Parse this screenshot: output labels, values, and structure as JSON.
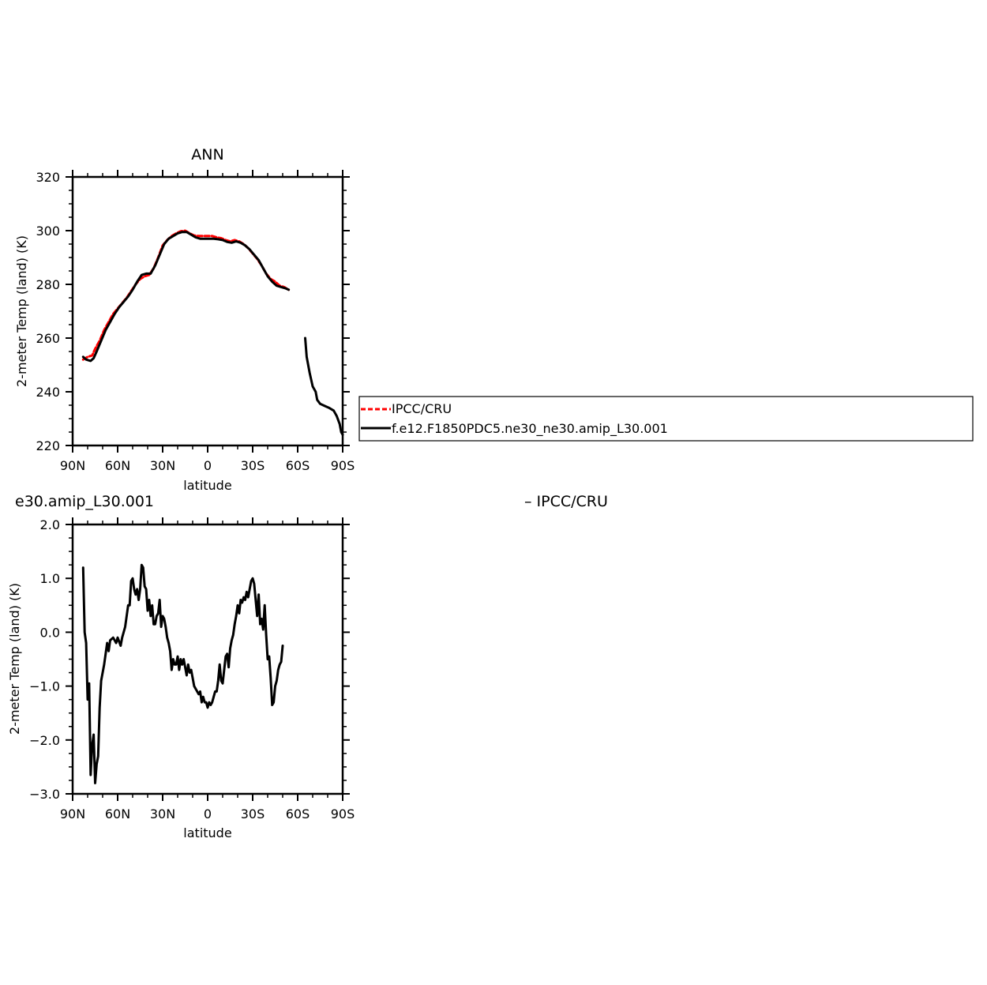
{
  "chart_data": [
    {
      "type": "line",
      "title": "ANN",
      "xlabel": "latitude",
      "ylabel": "2-meter Temp (land) (K)",
      "xlim": [
        90,
        -90
      ],
      "ylim": [
        220,
        320
      ],
      "xticks": [
        {
          "value": 90,
          "label": "90N"
        },
        {
          "value": 60,
          "label": "60N"
        },
        {
          "value": 30,
          "label": "30N"
        },
        {
          "value": 0,
          "label": "0"
        },
        {
          "value": -30,
          "label": "30S"
        },
        {
          "value": -60,
          "label": "60S"
        },
        {
          "value": -90,
          "label": "90S"
        }
      ],
      "yticks": [
        {
          "value": 220,
          "label": "220"
        },
        {
          "value": 240,
          "label": "240"
        },
        {
          "value": 260,
          "label": "260"
        },
        {
          "value": 280,
          "label": "280"
        },
        {
          "value": 300,
          "label": "300"
        },
        {
          "value": 320,
          "label": "320"
        }
      ],
      "legend_position": "right",
      "legend": [
        "IPCC/CRU",
        "f.e12.F1850PDC5.ne30_ne30.amip_L30.001"
      ],
      "series": [
        {
          "name": "IPCC/CRU",
          "color": "#ff0000",
          "dash": "dashed",
          "points": [
            [
              83,
              252
            ],
            [
              80,
              253
            ],
            [
              77,
              253.5
            ],
            [
              75,
              256
            ],
            [
              72,
              259
            ],
            [
              69,
              263
            ],
            [
              66,
              266
            ],
            [
              63,
              269
            ],
            [
              60,
              271
            ],
            [
              57,
              273
            ],
            [
              54,
              275
            ],
            [
              51,
              277.5
            ],
            [
              48,
              280
            ],
            [
              45,
              282
            ],
            [
              42,
              283
            ],
            [
              39,
              283.5
            ],
            [
              36,
              286
            ],
            [
              33,
              290
            ],
            [
              30,
              294.5
            ],
            [
              27,
              296.5
            ],
            [
              24,
              298
            ],
            [
              21,
              299
            ],
            [
              18,
              299.8
            ],
            [
              15,
              300
            ],
            [
              12,
              299
            ],
            [
              9,
              298.2
            ],
            [
              6,
              298
            ],
            [
              3,
              298
            ],
            [
              0,
              298
            ],
            [
              -3,
              298
            ],
            [
              -6,
              297.5
            ],
            [
              -9,
              297.2
            ],
            [
              -12,
              296.5
            ],
            [
              -15,
              296
            ],
            [
              -18,
              296.5
            ],
            [
              -21,
              296
            ],
            [
              -24,
              295
            ],
            [
              -27,
              293.5
            ],
            [
              -30,
              291.5
            ],
            [
              -33,
              289.5
            ],
            [
              -36,
              287
            ],
            [
              -39,
              284
            ],
            [
              -42,
              282
            ],
            [
              -45,
              281
            ],
            [
              -48,
              279.5
            ],
            [
              -51,
              279
            ],
            [
              -54,
              278
            ]
          ]
        },
        {
          "name": "f.e12.F1850PDC5.ne30_ne30.amip_L30.001",
          "color": "#000000",
          "dash": "solid",
          "points": [
            [
              83,
              253
            ],
            [
              81,
              252
            ],
            [
              78,
              251.5
            ],
            [
              76,
              252.5
            ],
            [
              74,
              255
            ],
            [
              71,
              259
            ],
            [
              68,
              263
            ],
            [
              65,
              266
            ],
            [
              62,
              269
            ],
            [
              59,
              271.5
            ],
            [
              56,
              273.5
            ],
            [
              53,
              275.5
            ],
            [
              50,
              278
            ],
            [
              47,
              281
            ],
            [
              44,
              283.5
            ],
            [
              41,
              284
            ],
            [
              38,
              284
            ],
            [
              35,
              287
            ],
            [
              32,
              291
            ],
            [
              29,
              295
            ],
            [
              26,
              297
            ],
            [
              23,
              298
            ],
            [
              20,
              299
            ],
            [
              17,
              299.5
            ],
            [
              14,
              299.5
            ],
            [
              11,
              298.5
            ],
            [
              8,
              297.5
            ],
            [
              5,
              297
            ],
            [
              2,
              297
            ],
            [
              -1,
              297
            ],
            [
              -4,
              297
            ],
            [
              -7,
              296.8
            ],
            [
              -10,
              296.5
            ],
            [
              -13,
              295.8
            ],
            [
              -16,
              295.5
            ],
            [
              -19,
              296
            ],
            [
              -22,
              295.5
            ],
            [
              -25,
              294.5
            ],
            [
              -28,
              293
            ],
            [
              -31,
              291
            ],
            [
              -34,
              289
            ],
            [
              -37,
              286
            ],
            [
              -40,
              283
            ],
            [
              -43,
              281
            ],
            [
              -46,
              279.5
            ],
            [
              -49,
              279
            ],
            [
              -52,
              278.5
            ],
            [
              -54,
              278
            ]
          ]
        },
        {
          "name": "",
          "color": "#000000",
          "dash": "solid",
          "points": [
            [
              -65,
              260
            ],
            [
              -66,
              253
            ],
            [
              -68,
              247
            ],
            [
              -70,
              242
            ],
            [
              -72,
              240
            ],
            [
              -73,
              237
            ],
            [
              -75,
              235.5
            ],
            [
              -77,
              235
            ],
            [
              -79,
              234.5
            ],
            [
              -81,
              234
            ],
            [
              -84,
              233
            ],
            [
              -86,
              231
            ],
            [
              -88,
              228
            ],
            [
              -89,
              225
            ],
            [
              -90,
              224
            ]
          ]
        }
      ]
    },
    {
      "type": "line",
      "title": "e30.amip_L30.001",
      "subtitle": "– IPCC/CRU",
      "xlabel": "latitude",
      "ylabel": "2-meter Temp (land) (K)",
      "xlim": [
        90,
        -90
      ],
      "ylim": [
        -3.0,
        2.0
      ],
      "xticks": [
        {
          "value": 90,
          "label": "90N"
        },
        {
          "value": 60,
          "label": "60N"
        },
        {
          "value": 30,
          "label": "30N"
        },
        {
          "value": 0,
          "label": "0"
        },
        {
          "value": -30,
          "label": "30S"
        },
        {
          "value": -60,
          "label": "60S"
        },
        {
          "value": -90,
          "label": "90S"
        }
      ],
      "yticks": [
        {
          "value": -3.0,
          "label": "−3.0"
        },
        {
          "value": -2.0,
          "label": "−2.0"
        },
        {
          "value": -1.0,
          "label": "−1.0"
        },
        {
          "value": 0.0,
          "label": "0.0"
        },
        {
          "value": 1.0,
          "label": "1.0"
        },
        {
          "value": 2.0,
          "label": "2.0"
        }
      ],
      "series": [
        {
          "name": "",
          "color": "#000000",
          "dash": "solid",
          "points": [
            [
              83,
              1.2
            ],
            [
              82,
              0.0
            ],
            [
              81,
              -0.2
            ],
            [
              80,
              -1.25
            ],
            [
              79,
              -0.95
            ],
            [
              78,
              -2.65
            ],
            [
              77,
              -2.1
            ],
            [
              76,
              -1.9
            ],
            [
              75,
              -2.8
            ],
            [
              74,
              -2.45
            ],
            [
              73,
              -2.3
            ],
            [
              72,
              -1.4
            ],
            [
              71,
              -0.9
            ],
            [
              69,
              -0.6
            ],
            [
              67,
              -0.2
            ],
            [
              66,
              -0.35
            ],
            [
              65,
              -0.15
            ],
            [
              63,
              -0.1
            ],
            [
              61,
              -0.2
            ],
            [
              60,
              -0.1
            ],
            [
              58,
              -0.25
            ],
            [
              57,
              -0.1
            ],
            [
              55,
              0.1
            ],
            [
              54,
              0.3
            ],
            [
              53,
              0.5
            ],
            [
              52,
              0.5
            ],
            [
              51,
              0.95
            ],
            [
              50,
              1.0
            ],
            [
              49,
              0.8
            ],
            [
              48,
              0.7
            ],
            [
              47,
              0.8
            ],
            [
              46,
              0.6
            ],
            [
              45,
              0.8
            ],
            [
              44,
              1.25
            ],
            [
              43,
              1.2
            ],
            [
              42,
              0.85
            ],
            [
              41,
              0.8
            ],
            [
              40,
              0.4
            ],
            [
              39,
              0.6
            ],
            [
              38,
              0.3
            ],
            [
              37,
              0.5
            ],
            [
              36,
              0.15
            ],
            [
              35,
              0.15
            ],
            [
              34,
              0.3
            ],
            [
              33,
              0.35
            ],
            [
              32,
              0.6
            ],
            [
              31,
              0.1
            ],
            [
              30,
              0.3
            ],
            [
              29,
              0.25
            ],
            [
              28,
              0.1
            ],
            [
              27,
              -0.1
            ],
            [
              26,
              -0.2
            ],
            [
              25,
              -0.35
            ],
            [
              24,
              -0.7
            ],
            [
              23,
              -0.5
            ],
            [
              22,
              -0.6
            ],
            [
              21,
              -0.6
            ],
            [
              20,
              -0.45
            ],
            [
              19,
              -0.7
            ],
            [
              18,
              -0.5
            ],
            [
              17,
              -0.6
            ],
            [
              16,
              -0.5
            ],
            [
              15,
              -0.65
            ],
            [
              14,
              -0.8
            ],
            [
              13,
              -0.6
            ],
            [
              12,
              -0.75
            ],
            [
              11,
              -0.7
            ],
            [
              10,
              -0.85
            ],
            [
              9,
              -1.0
            ],
            [
              8,
              -1.05
            ],
            [
              7,
              -1.1
            ],
            [
              6,
              -1.15
            ],
            [
              5,
              -1.1
            ],
            [
              4,
              -1.3
            ],
            [
              3,
              -1.2
            ],
            [
              2,
              -1.3
            ],
            [
              1,
              -1.3
            ],
            [
              0,
              -1.4
            ],
            [
              -1,
              -1.3
            ],
            [
              -2,
              -1.35
            ],
            [
              -3,
              -1.3
            ],
            [
              -4,
              -1.2
            ],
            [
              -5,
              -1.1
            ],
            [
              -6,
              -1.1
            ],
            [
              -7,
              -0.9
            ],
            [
              -8,
              -0.6
            ],
            [
              -9,
              -0.9
            ],
            [
              -10,
              -0.95
            ],
            [
              -11,
              -0.7
            ],
            [
              -12,
              -0.45
            ],
            [
              -13,
              -0.4
            ],
            [
              -14,
              -0.65
            ],
            [
              -15,
              -0.3
            ],
            [
              -16,
              -0.15
            ],
            [
              -17,
              -0.05
            ],
            [
              -18,
              0.15
            ],
            [
              -19,
              0.3
            ],
            [
              -20,
              0.5
            ],
            [
              -21,
              0.35
            ],
            [
              -22,
              0.6
            ],
            [
              -23,
              0.55
            ],
            [
              -24,
              0.65
            ],
            [
              -25,
              0.6
            ],
            [
              -26,
              0.75
            ],
            [
              -27,
              0.65
            ],
            [
              -28,
              0.8
            ],
            [
              -29,
              0.95
            ],
            [
              -30,
              1.0
            ],
            [
              -31,
              0.9
            ],
            [
              -32,
              0.6
            ],
            [
              -33,
              0.3
            ],
            [
              -34,
              0.7
            ],
            [
              -35,
              0.15
            ],
            [
              -36,
              0.25
            ],
            [
              -37,
              0.05
            ],
            [
              -38,
              0.5
            ],
            [
              -39,
              -0.05
            ],
            [
              -40,
              -0.5
            ],
            [
              -41,
              -0.45
            ],
            [
              -42,
              -0.85
            ],
            [
              -43,
              -1.35
            ],
            [
              -44,
              -1.3
            ],
            [
              -45,
              -1.0
            ],
            [
              -46,
              -0.9
            ],
            [
              -47,
              -0.7
            ],
            [
              -48,
              -0.6
            ],
            [
              -49,
              -0.55
            ],
            [
              -50,
              -0.25
            ]
          ]
        }
      ]
    }
  ]
}
